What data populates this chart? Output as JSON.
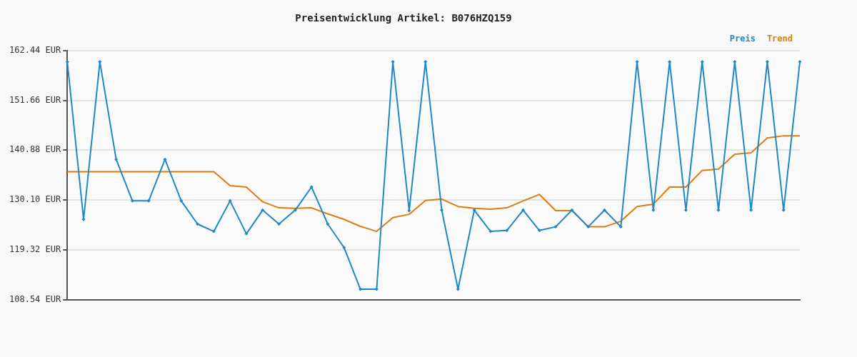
{
  "chart_data": {
    "type": "line",
    "title": "Preisentwicklung Artikel: B076HZQ159",
    "categories": [
      null,
      null,
      null,
      null,
      null,
      null,
      null,
      null,
      null,
      null,
      null,
      null,
      null,
      null,
      null,
      null,
      null,
      null,
      null,
      null,
      null,
      null,
      null,
      null,
      null,
      null,
      null,
      null,
      null,
      null,
      null,
      null,
      null,
      null,
      null,
      null,
      null,
      null,
      null,
      null,
      null,
      null,
      null,
      null,
      null,
      null
    ],
    "series": [
      {
        "name": "Preis",
        "color": "#1f88c8",
        "marker": "diamond",
        "values": [
          160.0,
          125.9,
          160.0,
          138.9,
          129.9,
          129.9,
          138.9,
          129.9,
          124.9,
          123.3,
          129.9,
          122.8,
          127.9,
          124.9,
          127.9,
          132.9,
          124.9,
          119.8,
          110.8,
          110.8,
          160.0,
          127.8,
          160.0,
          127.9,
          110.8,
          127.9,
          123.3,
          123.5,
          127.9,
          123.5,
          124.3,
          127.9,
          124.3,
          127.9,
          124.3,
          160.0,
          127.9,
          160.0,
          127.9,
          160.0,
          127.9,
          160.0,
          127.9,
          160.0,
          127.9,
          160.0
        ]
      },
      {
        "name": "Trend",
        "color": "#e07b10",
        "marker": "none",
        "values": [
          136.2,
          136.2,
          136.2,
          136.2,
          136.2,
          136.2,
          136.2,
          136.2,
          136.2,
          136.2,
          133.2,
          132.9,
          129.7,
          128.4,
          128.3,
          128.4,
          127.1,
          125.9,
          124.4,
          123.3,
          126.3,
          127.0,
          130.0,
          130.3,
          128.7,
          128.3,
          128.1,
          128.4,
          129.9,
          131.3,
          127.8,
          127.8,
          124.3,
          124.3,
          125.5,
          128.7,
          129.2,
          132.9,
          132.9,
          136.5,
          136.8,
          140.0,
          140.3,
          143.5,
          144.0,
          144.0
        ]
      }
    ],
    "ylim": [
      108.54,
      162.44
    ],
    "yticks": [
      {
        "value": 108.54,
        "label": "108.54 EUR"
      },
      {
        "value": 119.32,
        "label": "119.32 EUR"
      },
      {
        "value": 130.1,
        "label": "130.10 EUR"
      },
      {
        "value": 140.88,
        "label": "140.88 EUR"
      },
      {
        "value": 151.66,
        "label": "151.66 EUR"
      },
      {
        "value": 162.44,
        "label": "162.44 EUR"
      }
    ],
    "grid": "y",
    "legend": "top right",
    "line_style": "solid"
  }
}
